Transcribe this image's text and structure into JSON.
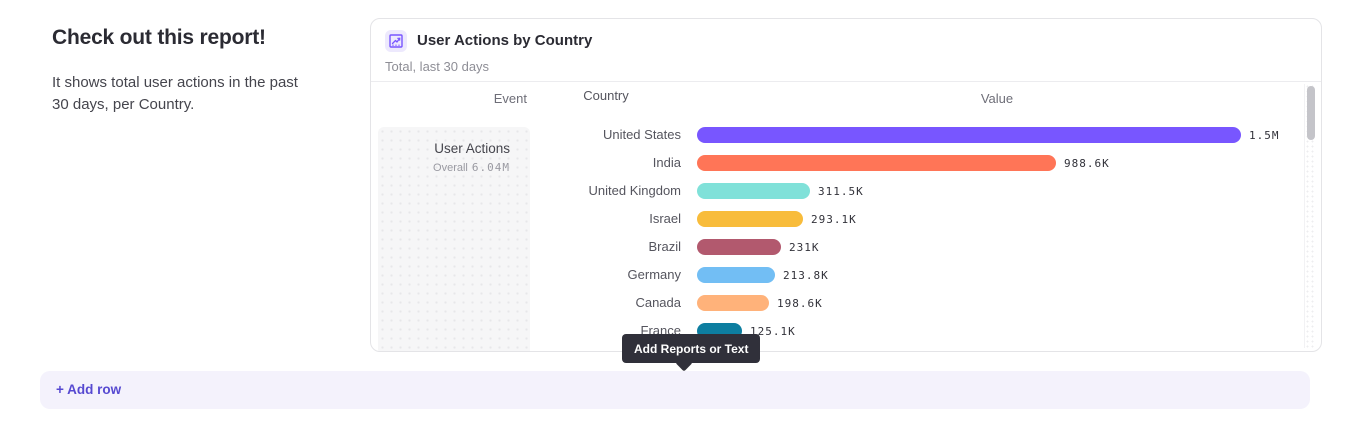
{
  "intro": {
    "heading": "Check out this report!",
    "description": "It shows total user actions in the past 30 days, per Country."
  },
  "report_card": {
    "title": "User Actions by Country",
    "subtitle": "Total, last 30 days",
    "icon": "line-chart-report-icon",
    "columns": {
      "event": "Event",
      "country": "Country",
      "value": "Value"
    },
    "event_cell": {
      "name": "User Actions",
      "overall_label": "Overall",
      "overall_value": "6.04M"
    }
  },
  "chart_data": {
    "type": "bar",
    "orientation": "horizontal",
    "title": "User Actions by Country",
    "subtitle": "Total, last 30 days",
    "series_name": "User Actions",
    "overall_total": "6.04M",
    "categories": [
      "United States",
      "India",
      "United Kingdom",
      "Israel",
      "Brazil",
      "Germany",
      "Canada",
      "France"
    ],
    "values": [
      1500000,
      988600,
      311500,
      293100,
      231000,
      213800,
      198600,
      125100
    ],
    "value_labels": [
      "1.5M",
      "988.6K",
      "311.5K",
      "293.1K",
      "231K",
      "213.8K",
      "198.6K",
      "125.1K"
    ],
    "colors": [
      "#7856FF",
      "#FF7557",
      "#80E1D9",
      "#F8BC3B",
      "#B2596E",
      "#72BEF4",
      "#FFB27A",
      "#0D7EA0"
    ],
    "xlim": [
      0,
      1500000
    ],
    "legend_position": "none",
    "grid": false
  },
  "tooltip": {
    "text": "Add Reports or Text"
  },
  "add_row": {
    "label": "+ Add row"
  },
  "theme": {
    "accent": "#7856ff",
    "card_border": "#e4e4e7",
    "tooltip_bg": "#30303a",
    "add_row_bg": "#f4f2fc",
    "add_row_text": "#5649d1"
  }
}
